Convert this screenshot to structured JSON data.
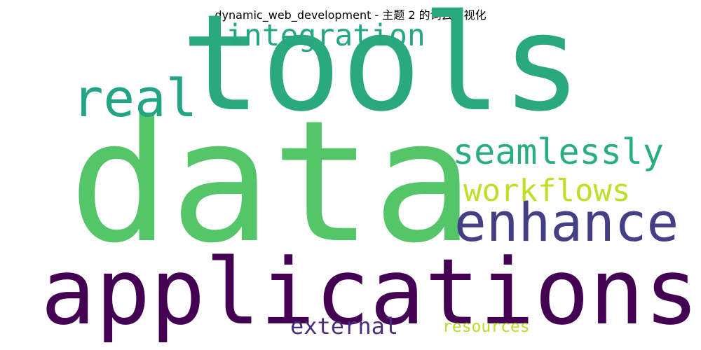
{
  "title": "dynamic_web_development - 主题 2 的词云可视化",
  "words": [
    {
      "text": "tools",
      "color": "#2aa97e"
    },
    {
      "text": "data",
      "color": "#54c568"
    },
    {
      "text": "applications",
      "color": "#440154"
    },
    {
      "text": "enhance",
      "color": "#433e85"
    },
    {
      "text": "integration",
      "color": "#26a784"
    },
    {
      "text": "real",
      "color": "#23a484"
    },
    {
      "text": "seamlessly",
      "color": "#28ae80"
    },
    {
      "text": "workflows",
      "color": "#bddf26"
    },
    {
      "text": "external",
      "color": "#472d7b"
    },
    {
      "text": "resources",
      "color": "#b5de2b"
    }
  ]
}
